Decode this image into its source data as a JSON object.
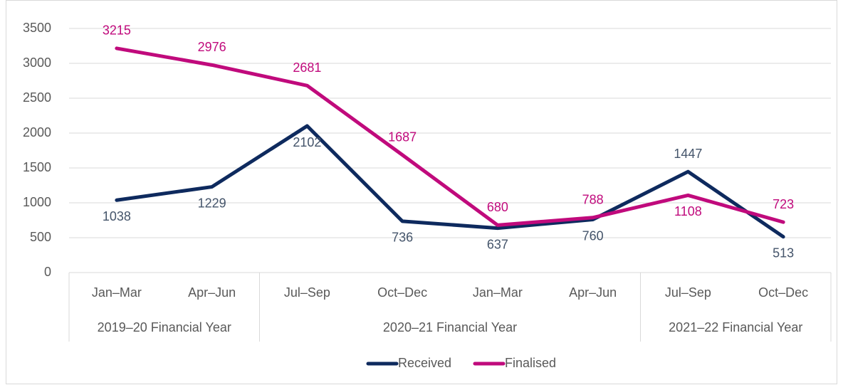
{
  "chart_data": {
    "type": "line",
    "groups": [
      {
        "label": "2019–20 Financial Year",
        "categories": [
          "Jan–Mar",
          "Apr–Jun"
        ]
      },
      {
        "label": "2020–21 Financial Year",
        "categories": [
          "Jul–Sep",
          "Oct–Dec",
          "Jan–Mar",
          "Apr–Jun"
        ]
      },
      {
        "label": "2021–22 Financial Year",
        "categories": [
          "Jul–Sep",
          "Oct–Dec"
        ]
      }
    ],
    "series": [
      {
        "name": "Received",
        "color": "#0e2a5e",
        "label_color": "#44546a",
        "values": [
          1038,
          1229,
          2102,
          736,
          637,
          760,
          1447,
          513
        ]
      },
      {
        "name": "Finalised",
        "color": "#c00a7c",
        "label_color": "#c00a7c",
        "values": [
          3215,
          2976,
          2681,
          1687,
          680,
          788,
          1108,
          723
        ]
      }
    ],
    "ylim": [
      0,
      3500
    ],
    "yticks": [
      0,
      500,
      1000,
      1500,
      2000,
      2500,
      3000,
      3500
    ],
    "grid": true,
    "legend": "bottom"
  }
}
